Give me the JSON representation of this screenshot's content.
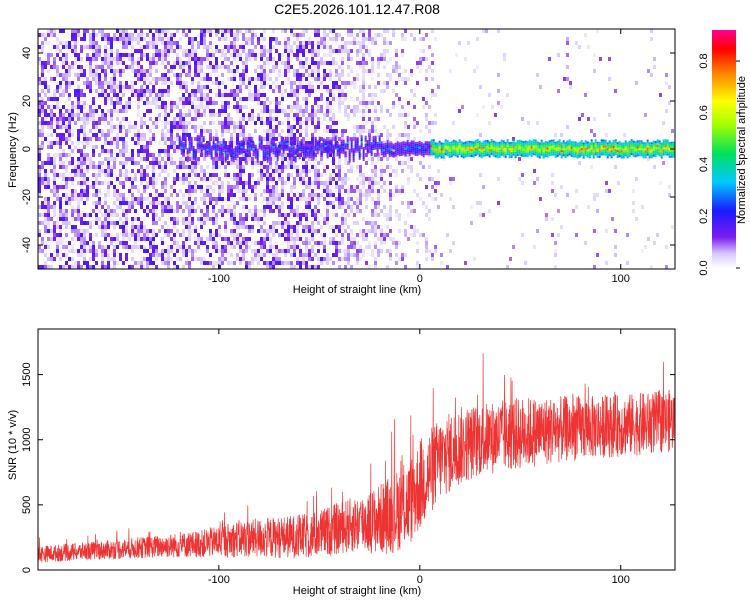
{
  "title": "C2E5.2026.101.12.47.R08",
  "chart_data": [
    {
      "type": "heatmap",
      "xlabel": "Height of straight line (km)",
      "ylabel": "Frequency (Hz)",
      "xlim": [
        -190,
        127
      ],
      "ylim": [
        -50,
        50
      ],
      "xticks": [
        -100,
        0,
        100
      ],
      "yticks": [
        -40,
        -20,
        0,
        20,
        40
      ],
      "colorbar": {
        "label": "Normalized spectral amplitude",
        "range": [
          0,
          0.92
        ],
        "ticks": [
          0.0,
          0.2,
          0.4,
          0.6,
          0.8
        ]
      },
      "description_ridge": {
        "frequency_hz": 0.5,
        "x_start_km": -120,
        "x_end_km": 127,
        "peak_amplitude": 0.88
      }
    },
    {
      "type": "line",
      "xlabel": "Height of straight line (km)",
      "ylabel": "SNR (10 * v/v)",
      "xlim": [
        -190,
        127
      ],
      "ylim": [
        0,
        1850
      ],
      "xticks": [
        -100,
        0,
        100
      ],
      "yticks": [
        0,
        500,
        1000,
        1500
      ],
      "color": "#ee3333",
      "envelope_x": [
        -190,
        -160,
        -130,
        -110,
        -90,
        -70,
        -55,
        -40,
        -30,
        -22,
        -15,
        -5,
        0,
        10,
        20,
        30,
        50,
        70,
        90,
        110,
        127
      ],
      "envelope_mean": [
        120,
        150,
        180,
        200,
        240,
        250,
        260,
        320,
        360,
        380,
        420,
        520,
        650,
        850,
        950,
        1000,
        1050,
        1080,
        1100,
        1120,
        1150
      ],
      "envelope_spread": [
        80,
        90,
        110,
        130,
        180,
        200,
        220,
        250,
        280,
        320,
        380,
        420,
        450,
        400,
        380,
        350,
        350,
        320,
        300,
        300,
        300
      ]
    }
  ]
}
